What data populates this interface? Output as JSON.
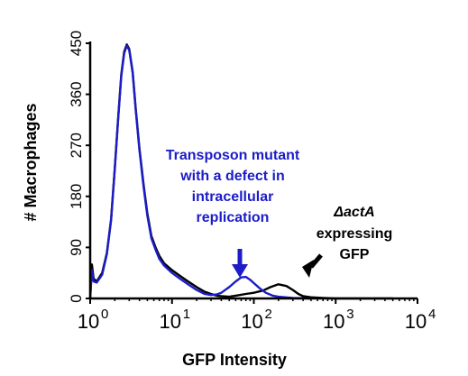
{
  "chart_data": {
    "type": "line",
    "title": "",
    "xlabel": "GFP Intensity",
    "ylabel": "# Macrophages",
    "xscale": "log",
    "xlim": [
      1,
      10000
    ],
    "ylim": [
      0,
      450
    ],
    "xticks": [
      {
        "value": 1,
        "base": "10",
        "exp": "0"
      },
      {
        "value": 10,
        "base": "10",
        "exp": "1"
      },
      {
        "value": 100,
        "base": "10",
        "exp": "2"
      },
      {
        "value": 1000,
        "base": "10",
        "exp": "3"
      },
      {
        "value": 10000,
        "base": "10",
        "exp": "4"
      }
    ],
    "yticks": [
      {
        "value": 0,
        "label": "0"
      },
      {
        "value": 90,
        "label": "90"
      },
      {
        "value": 180,
        "label": "180"
      },
      {
        "value": 270,
        "label": "270"
      },
      {
        "value": 360,
        "label": "360"
      },
      {
        "value": 450,
        "label": "450"
      }
    ],
    "grid": false,
    "series": [
      {
        "color": "#000000",
        "x": [
          1,
          1.05,
          1.1,
          1.2,
          1.4,
          1.6,
          1.8,
          2.0,
          2.2,
          2.4,
          2.6,
          2.8,
          3.0,
          3.3,
          3.6,
          4.0,
          4.5,
          5.0,
          5.6,
          6.3,
          7.0,
          8.0,
          10,
          12.5,
          15,
          20,
          25,
          30,
          35,
          40,
          50,
          60,
          80,
          100,
          130,
          160,
          200,
          250,
          300,
          350,
          400,
          500,
          700,
          1000,
          1500,
          2000,
          3000,
          5000
        ],
        "y": [
          0,
          60,
          35,
          30,
          45,
          80,
          140,
          230,
          320,
          395,
          435,
          448,
          440,
          400,
          335,
          265,
          200,
          150,
          110,
          90,
          75,
          62,
          50,
          40,
          32,
          20,
          12,
          8,
          5,
          4,
          3,
          5,
          8,
          10,
          14,
          20,
          25,
          22,
          15,
          8,
          4,
          2,
          1,
          0,
          0,
          0,
          0,
          0
        ]
      },
      {
        "color": "#1c1cc8",
        "x": [
          1,
          1.05,
          1.1,
          1.2,
          1.4,
          1.6,
          1.8,
          2.0,
          2.2,
          2.4,
          2.6,
          2.8,
          3.0,
          3.3,
          3.6,
          4.0,
          4.5,
          5.0,
          5.6,
          6.3,
          7.0,
          8.0,
          10,
          12.5,
          15,
          20,
          25,
          30,
          35,
          40,
          50,
          60,
          70,
          80,
          90,
          100,
          120,
          140,
          170,
          200,
          300,
          500
        ],
        "y": [
          0,
          50,
          30,
          28,
          42,
          78,
          138,
          228,
          318,
          392,
          432,
          446,
          438,
          398,
          333,
          262,
          196,
          146,
          106,
          86,
          70,
          58,
          45,
          35,
          27,
          15,
          8,
          6,
          7,
          10,
          20,
          30,
          37,
          38,
          33,
          27,
          17,
          10,
          5,
          3,
          1,
          0
        ]
      }
    ],
    "annotations": [
      {
        "id": "mutant",
        "color": "#1c1cc8",
        "lines": [
          "Transposon mutant",
          "with a defect in",
          "intracellular",
          "replication"
        ]
      },
      {
        "id": "actA",
        "color": "#000000",
        "lines": [
          "ΔactA",
          "expressing",
          "GFP"
        ]
      }
    ]
  }
}
